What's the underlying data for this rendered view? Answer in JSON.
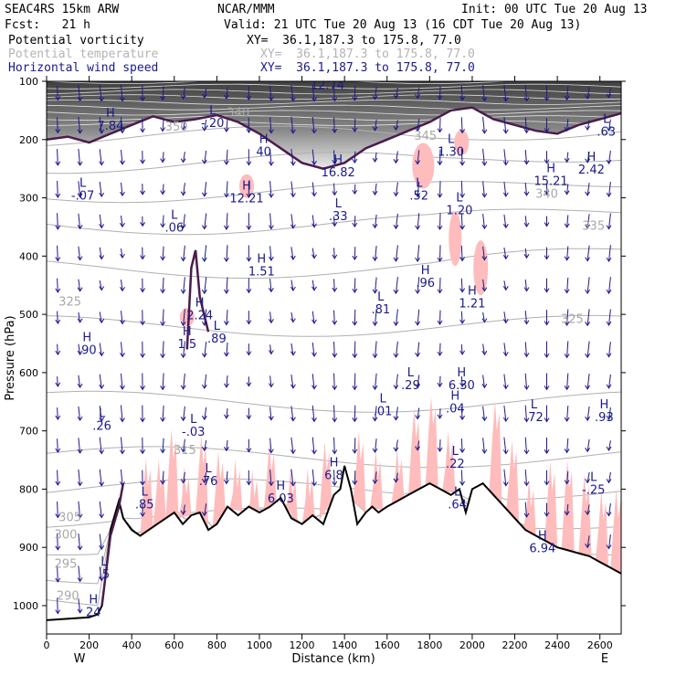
{
  "header": {
    "model": "SEAC4RS 15km ARW",
    "org": "NCAR/MMM",
    "init": "Init: 00 UTC Tue 20 Aug 13",
    "fcst": "Fcst:   21 h",
    "valid": "Valid: 21 UTC Tue 20 Aug 13 (16 CDT Tue 20 Aug 13)",
    "fields": [
      {
        "name": "Potential vorticity",
        "xy": "XY=  36.1,187.3 to 175.8, 77.0",
        "color": "#000000"
      },
      {
        "name": "Potential temperature",
        "xy": "XY=  36.1,187.3 to 175.8, 77.0",
        "color": "#b4b4b4"
      },
      {
        "name": "Horizontal wind speed",
        "xy": "XY=  36.1,187.3 to 175.8, 77.0",
        "color": "#1a1a8c"
      }
    ]
  },
  "chart_data": {
    "type": "cross-section",
    "xlabel": "Distance (km)",
    "ylabel": "Pressure (hPa)",
    "xlim": [
      0,
      2700
    ],
    "ylim": [
      1050,
      100
    ],
    "x_ticks": [
      0,
      200,
      400,
      600,
      800,
      1000,
      1200,
      1400,
      1600,
      1800,
      2000,
      2200,
      2400,
      2600
    ],
    "y_ticks": [
      100,
      200,
      300,
      400,
      500,
      600,
      700,
      800,
      900,
      1000
    ],
    "x_end_labels": {
      "left": "W",
      "right": "E"
    },
    "terrain": {
      "x": [
        0,
        200,
        240,
        260,
        280,
        300,
        340,
        360,
        400,
        440,
        480,
        520,
        560,
        600,
        640,
        680,
        720,
        760,
        800,
        850,
        900,
        950,
        1000,
        1050,
        1100,
        1150,
        1200,
        1250,
        1300,
        1350,
        1380,
        1400,
        1430,
        1460,
        1500,
        1530,
        1560,
        1600,
        1650,
        1700,
        1750,
        1800,
        1850,
        1900,
        1940,
        1970,
        2000,
        2050,
        2100,
        2150,
        2200,
        2250,
        2300,
        2350,
        2400,
        2450,
        2500,
        2550,
        2600,
        2650,
        2700
      ],
      "p": [
        1025,
        1020,
        1015,
        1000,
        940,
        870,
        820,
        850,
        870,
        880,
        870,
        860,
        850,
        840,
        860,
        845,
        840,
        870,
        860,
        830,
        845,
        830,
        840,
        830,
        815,
        850,
        860,
        845,
        860,
        810,
        800,
        760,
        800,
        860,
        840,
        830,
        840,
        830,
        820,
        810,
        800,
        790,
        800,
        810,
        800,
        840,
        800,
        790,
        810,
        830,
        850,
        870,
        880,
        890,
        900,
        905,
        910,
        915,
        925,
        935,
        945
      ]
    },
    "wind_maxmin_labels": [
      {
        "type": "H",
        "value": "7.84",
        "x": 300,
        "p": 180
      },
      {
        "type": "L",
        "value": "-.20",
        "x": 780,
        "p": 175
      },
      {
        "type": "H",
        "value": "12.74",
        "x": 1320,
        "p": 110
      },
      {
        "type": "H",
        "value": "40",
        "x": 1020,
        "p": 225
      },
      {
        "type": "L",
        "value": "1.30",
        "x": 1900,
        "p": 225
      },
      {
        "type": "L",
        "value": ".63",
        "x": 2630,
        "p": 190
      },
      {
        "type": "L",
        "value": "-.07",
        "x": 170,
        "p": 300
      },
      {
        "type": "H",
        "value": "12.21",
        "x": 940,
        "p": 305
      },
      {
        "type": "H",
        "value": "16.82",
        "x": 1370,
        "p": 260
      },
      {
        "type": "L",
        "value": ".52",
        "x": 1750,
        "p": 300
      },
      {
        "type": "L",
        "value": "1.20",
        "x": 1940,
        "p": 325
      },
      {
        "type": "H",
        "value": "15.21",
        "x": 2370,
        "p": 275
      },
      {
        "type": "H",
        "value": "2.42",
        "x": 2560,
        "p": 255
      },
      {
        "type": "L",
        "value": ".06",
        "x": 600,
        "p": 355
      },
      {
        "type": "L",
        "value": ".33",
        "x": 1370,
        "p": 335
      },
      {
        "type": "H",
        "value": "1.51",
        "x": 1010,
        "p": 430
      },
      {
        "type": "H",
        "value": ".96",
        "x": 1780,
        "p": 450
      },
      {
        "type": "H",
        "value": "1.21",
        "x": 2000,
        "p": 485
      },
      {
        "type": "L",
        "value": ".81",
        "x": 1570,
        "p": 495
      },
      {
        "type": "H",
        "value": "2.24",
        "x": 720,
        "p": 505
      },
      {
        "type": "H",
        "value": ".90",
        "x": 190,
        "p": 565
      },
      {
        "type": "H",
        "value": "1.5",
        "x": 660,
        "p": 555
      },
      {
        "type": "L",
        "value": ".89",
        "x": 800,
        "p": 545
      },
      {
        "type": "L",
        "value": ".29",
        "x": 1710,
        "p": 625
      },
      {
        "type": "H",
        "value": "6.30",
        "x": 1950,
        "p": 625
      },
      {
        "type": "L",
        "value": ".01",
        "x": 1580,
        "p": 670
      },
      {
        "type": "H",
        "value": ".04",
        "x": 1920,
        "p": 665
      },
      {
        "type": "L",
        "value": ".72",
        "x": 2290,
        "p": 680
      },
      {
        "type": "H",
        "value": ".93",
        "x": 2620,
        "p": 680
      },
      {
        "type": "L",
        "value": ".26",
        "x": 260,
        "p": 695
      },
      {
        "type": "L",
        "value": "-.03",
        "x": 690,
        "p": 705
      },
      {
        "type": "L",
        "value": ".22",
        "x": 1920,
        "p": 760
      },
      {
        "type": "L",
        "value": "-.25",
        "x": 2570,
        "p": 805
      },
      {
        "type": "L",
        "value": ".76",
        "x": 760,
        "p": 790
      },
      {
        "type": "H",
        "value": "6.8",
        "x": 1350,
        "p": 780
      },
      {
        "type": "L",
        "value": ".85",
        "x": 460,
        "p": 830
      },
      {
        "type": "H",
        "value": "6.03",
        "x": 1100,
        "p": 820
      },
      {
        "type": "L",
        "value": ".64",
        "x": 1930,
        "p": 830
      },
      {
        "type": "H",
        "value": "6.94",
        "x": 2330,
        "p": 905
      },
      {
        "type": "L",
        "value": ".5",
        "x": 270,
        "p": 950
      },
      {
        "type": "H",
        "value": "24",
        "x": 220,
        "p": 1015
      }
    ],
    "theta_labels": [
      {
        "value": "350",
        "x": 610,
        "p": 185
      },
      {
        "value": "340",
        "x": 900,
        "p": 160
      },
      {
        "value": "345",
        "x": 1780,
        "p": 200
      },
      {
        "value": "340",
        "x": 2350,
        "p": 300
      },
      {
        "value": "335",
        "x": 2570,
        "p": 355
      },
      {
        "value": "325",
        "x": 110,
        "p": 485
      },
      {
        "value": "325",
        "x": 2470,
        "p": 515
      },
      {
        "value": "315",
        "x": 650,
        "p": 740
      },
      {
        "value": "305",
        "x": 110,
        "p": 855
      },
      {
        "value": "300",
        "x": 90,
        "p": 885
      },
      {
        "value": "295",
        "x": 90,
        "p": 935
      },
      {
        "value": "290",
        "x": 100,
        "p": 990
      }
    ]
  }
}
